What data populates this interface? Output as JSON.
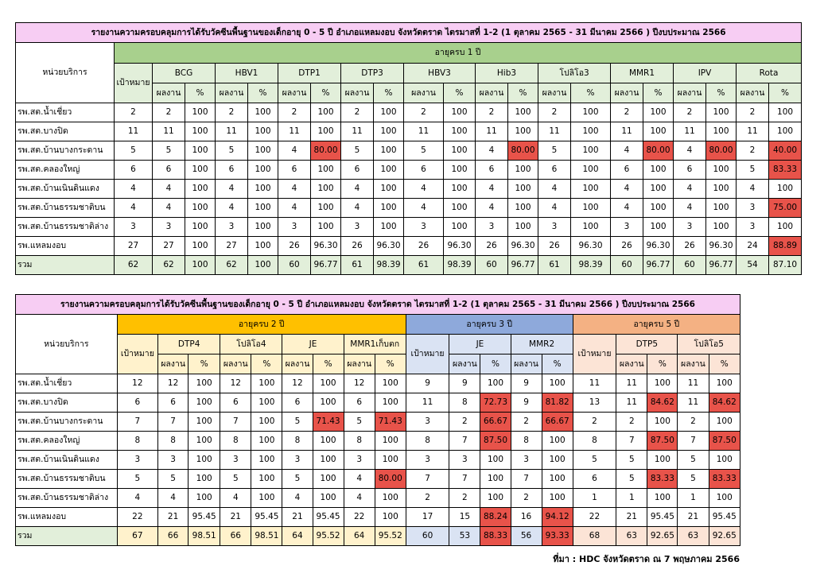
{
  "table1": {
    "title": "รายงานความครอบคลุมการได้รับวัคซีนพื้นฐานของเด็กอายุ 0 - 5 ปี อำเภอแหลมงอบ จังหวัดตราด ไตรมาสที่ 1-2 (1 ตุลาคม 2565 - 31 มีนาคม 2566 ) ปีงบประมาณ 2566",
    "unit_header": "หน่วยบริการ",
    "age_group": "อายุครบ 1 ปี",
    "target_header": "เป้าหมาย",
    "vaccines": [
      "BCG",
      "HBV1",
      "DTP1",
      "DTP3",
      "HBV3",
      "Hib3",
      "โปลิโอ3",
      "MMR1",
      "IPV",
      "Rota"
    ],
    "result_label": "ผลงาน",
    "pct_label": "%",
    "rows": [
      {
        "unit": "รพ.สต.น้ำเชี่ยว",
        "cells": [
          "2",
          "2",
          "100",
          "2",
          "100",
          "2",
          "100",
          "2",
          "100",
          "2",
          "100",
          "2",
          "100",
          "2",
          "100",
          "2",
          "100",
          "2",
          "100",
          "2",
          "100"
        ],
        "red": []
      },
      {
        "unit": "รพ.สต.บางปิด",
        "cells": [
          "11",
          "11",
          "100",
          "11",
          "100",
          "11",
          "100",
          "11",
          "100",
          "11",
          "100",
          "11",
          "100",
          "11",
          "100",
          "11",
          "100",
          "11",
          "100",
          "11",
          "100"
        ],
        "red": []
      },
      {
        "unit": "รพ.สต.บ้านบางกระดาน",
        "cells": [
          "5",
          "5",
          "100",
          "5",
          "100",
          "4",
          "80.00",
          "5",
          "100",
          "5",
          "100",
          "4",
          "80.00",
          "5",
          "100",
          "4",
          "80.00",
          "4",
          "80.00",
          "2",
          "40.00"
        ],
        "red": [
          6,
          12,
          16,
          18,
          20
        ]
      },
      {
        "unit": "รพ.สต.คลองใหญ่",
        "cells": [
          "6",
          "6",
          "100",
          "6",
          "100",
          "6",
          "100",
          "6",
          "100",
          "6",
          "100",
          "6",
          "100",
          "6",
          "100",
          "6",
          "100",
          "6",
          "100",
          "5",
          "83.33"
        ],
        "red": [
          20
        ]
      },
      {
        "unit": "รพ.สต.บ้านเนินดินแดง",
        "cells": [
          "4",
          "4",
          "100",
          "4",
          "100",
          "4",
          "100",
          "4",
          "100",
          "4",
          "100",
          "4",
          "100",
          "4",
          "100",
          "4",
          "100",
          "4",
          "100",
          "4",
          "100"
        ],
        "red": []
      },
      {
        "unit": "รพ.สต.บ้านธรรมชาติบน",
        "cells": [
          "4",
          "4",
          "100",
          "4",
          "100",
          "4",
          "100",
          "4",
          "100",
          "4",
          "100",
          "4",
          "100",
          "4",
          "100",
          "4",
          "100",
          "4",
          "100",
          "3",
          "75.00"
        ],
        "red": [
          20
        ]
      },
      {
        "unit": "รพ.สต.บ้านธรรมชาติล่าง",
        "cells": [
          "3",
          "3",
          "100",
          "3",
          "100",
          "3",
          "100",
          "3",
          "100",
          "3",
          "100",
          "3",
          "100",
          "3",
          "100",
          "3",
          "100",
          "3",
          "100",
          "3",
          "100"
        ],
        "red": []
      },
      {
        "unit": "รพ.แหลมงอบ",
        "cells": [
          "27",
          "27",
          "100",
          "27",
          "100",
          "26",
          "96.30",
          "26",
          "96.30",
          "26",
          "96.30",
          "26",
          "96.30",
          "26",
          "96.30",
          "26",
          "96.30",
          "26",
          "96.30",
          "24",
          "88.89"
        ],
        "red": [
          20
        ]
      }
    ],
    "total": {
      "unit": "รวม",
      "cells": [
        "62",
        "62",
        "100",
        "62",
        "100",
        "60",
        "96.77",
        "61",
        "98.39",
        "61",
        "98.39",
        "60",
        "96.77",
        "61",
        "98.39",
        "60",
        "96.77",
        "60",
        "96.77",
        "54",
        "87.10"
      ],
      "red": [
        20
      ]
    }
  },
  "table2": {
    "title": "รายงานความครอบคลุมการได้รับวัคซีนพื้นฐานของเด็กอายุ 0 - 5 ปี อำเภอแหลมงอบ จังหวัดตราด ไตรมาสที่ 1-2 (1 ตุลาคม 2565 - 31 มีนาคม 2566 ) ปีงบประมาณ 2566",
    "unit_header": "หน่วยบริการ",
    "age2": "อายุครบ 2 ปี",
    "age3": "อายุครบ 3 ปี",
    "age5": "อายุครบ 5 ปี",
    "target_header": "เป้าหมาย",
    "vaccines2": [
      "DTP4",
      "โปลิโอ4",
      "JE",
      "MMR1เก็บตก"
    ],
    "vaccines3": [
      "JE",
      "MMR2"
    ],
    "vaccines5": [
      "DTP5",
      "โปลิโอ5"
    ],
    "result_label": "ผลงาน",
    "pct_label": "%",
    "rows": [
      {
        "unit": "รพ.สต.น้ำเชี่ยว",
        "cells": [
          "12",
          "12",
          "100",
          "12",
          "100",
          "12",
          "100",
          "12",
          "100",
          "9",
          "9",
          "100",
          "9",
          "100",
          "11",
          "11",
          "100",
          "11",
          "100"
        ],
        "red": []
      },
      {
        "unit": "รพ.สต.บางปิด",
        "cells": [
          "6",
          "6",
          "100",
          "6",
          "100",
          "6",
          "100",
          "6",
          "100",
          "11",
          "8",
          "72.73",
          "9",
          "81.82",
          "13",
          "11",
          "84.62",
          "11",
          "84.62"
        ],
        "red": [
          11,
          13,
          16,
          18
        ]
      },
      {
        "unit": "รพ.สต.บ้านบางกระดาน",
        "cells": [
          "7",
          "7",
          "100",
          "7",
          "100",
          "5",
          "71.43",
          "5",
          "71.43",
          "3",
          "2",
          "66.67",
          "2",
          "66.67",
          "2",
          "2",
          "100",
          "2",
          "100"
        ],
        "red": [
          6,
          8,
          11,
          13
        ]
      },
      {
        "unit": "รพ.สต.คลองใหญ่",
        "cells": [
          "8",
          "8",
          "100",
          "8",
          "100",
          "8",
          "100",
          "8",
          "100",
          "8",
          "7",
          "87.50",
          "8",
          "100",
          "8",
          "7",
          "87.50",
          "7",
          "87.50"
        ],
        "red": [
          11,
          16,
          18
        ]
      },
      {
        "unit": "รพ.สต.บ้านเนินดินแดง",
        "cells": [
          "3",
          "3",
          "100",
          "3",
          "100",
          "3",
          "100",
          "3",
          "100",
          "3",
          "3",
          "100",
          "3",
          "100",
          "5",
          "5",
          "100",
          "5",
          "100"
        ],
        "red": []
      },
      {
        "unit": "รพ.สต.บ้านธรรมชาติบน",
        "cells": [
          "5",
          "5",
          "100",
          "5",
          "100",
          "5",
          "100",
          "4",
          "80.00",
          "7",
          "7",
          "100",
          "7",
          "100",
          "6",
          "5",
          "83.33",
          "5",
          "83.33"
        ],
        "red": [
          8,
          16,
          18
        ]
      },
      {
        "unit": "รพ.สต.บ้านธรรมชาติล่าง",
        "cells": [
          "4",
          "4",
          "100",
          "4",
          "100",
          "4",
          "100",
          "4",
          "100",
          "2",
          "2",
          "100",
          "2",
          "100",
          "1",
          "1",
          "100",
          "1",
          "100"
        ],
        "red": []
      },
      {
        "unit": "รพ.แหลมงอบ",
        "cells": [
          "22",
          "21",
          "95.45",
          "21",
          "95.45",
          "21",
          "95.45",
          "22",
          "100",
          "17",
          "15",
          "88.24",
          "16",
          "94.12",
          "22",
          "21",
          "95.45",
          "21",
          "95.45"
        ],
        "red": [
          11,
          13
        ]
      }
    ],
    "total": {
      "unit": "รวม",
      "cells": [
        "67",
        "66",
        "98.51",
        "66",
        "98.51",
        "64",
        "95.52",
        "64",
        "95.52",
        "60",
        "53",
        "88.33",
        "56",
        "93.33",
        "68",
        "63",
        "92.65",
        "63",
        "92.65"
      ],
      "red": [
        11,
        13
      ]
    }
  },
  "source": "ที่มา : HDC จังหวัดตราด ณ 7 พฤษภาคม  2566",
  "colors": {
    "pink": "#f7cdf3",
    "green": "#a8d08d",
    "green_light": "#e2efda",
    "gold": "#ffc000",
    "gold_light": "#fff2cc",
    "blue": "#8ea9db",
    "blue_light": "#dae3f3",
    "orange": "#f4b183",
    "orange_light": "#fce4d6",
    "red": "#e8534a"
  }
}
